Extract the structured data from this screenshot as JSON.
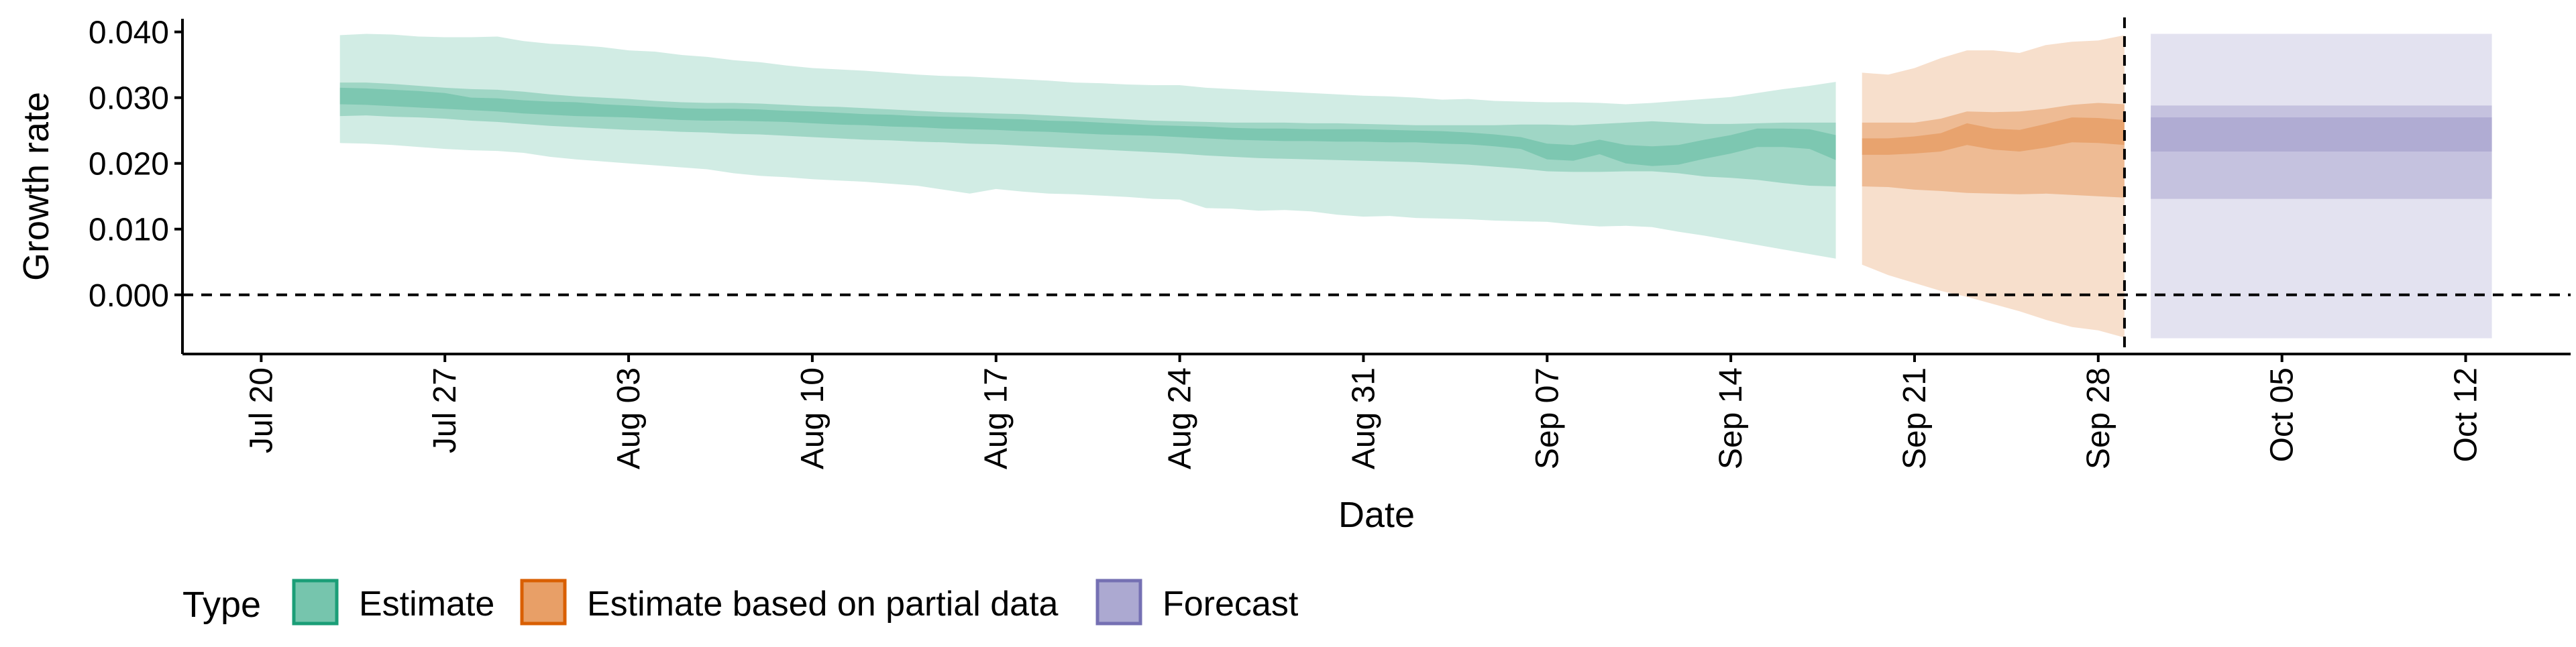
{
  "chart_data": {
    "type": "area",
    "title": "",
    "xlabel": "Date",
    "ylabel": "Growth rate",
    "y_ticks": [
      0.0,
      0.01,
      0.02,
      0.03,
      0.04
    ],
    "y_tick_labels": [
      "0.000",
      "0.010",
      "0.020",
      "0.030",
      "0.040"
    ],
    "ylim": [
      -0.009,
      0.042
    ],
    "xlim": [
      "2020-07-17",
      "2020-10-16"
    ],
    "x_ticks": [
      "2020-07-20",
      "2020-07-27",
      "2020-08-03",
      "2020-08-10",
      "2020-08-17",
      "2020-08-24",
      "2020-08-31",
      "2020-09-07",
      "2020-09-14",
      "2020-09-21",
      "2020-09-28",
      "2020-10-05",
      "2020-10-12"
    ],
    "x_tick_labels": [
      "Jul 20",
      "Jul 27",
      "Aug 03",
      "Aug 10",
      "Aug 17",
      "Aug 24",
      "Aug 31",
      "Sep 07",
      "Sep 14",
      "Sep 21",
      "Sep 28",
      "Oct 05",
      "Oct 12"
    ],
    "grid": false,
    "reference_lines": [
      {
        "axis": "y",
        "value": 0.0,
        "style": "dashed"
      },
      {
        "axis": "x",
        "value": "2020-09-29",
        "style": "dashed"
      }
    ],
    "legend": {
      "title": "Type",
      "position": "bottom",
      "entries": [
        {
          "label": "Estimate",
          "color": "#1b9e77"
        },
        {
          "label": "Estimate based on partial data",
          "color": "#d95f02"
        },
        {
          "label": "Forecast",
          "color": "#7570b3"
        }
      ]
    },
    "series": [
      {
        "name": "Estimate",
        "color": "#1b9e77",
        "x": [
          "2020-07-23",
          "2020-07-24",
          "2020-07-25",
          "2020-07-26",
          "2020-07-27",
          "2020-07-28",
          "2020-07-29",
          "2020-07-30",
          "2020-07-31",
          "2020-08-01",
          "2020-08-02",
          "2020-08-03",
          "2020-08-04",
          "2020-08-05",
          "2020-08-06",
          "2020-08-07",
          "2020-08-08",
          "2020-08-09",
          "2020-08-10",
          "2020-08-11",
          "2020-08-12",
          "2020-08-13",
          "2020-08-14",
          "2020-08-15",
          "2020-08-16",
          "2020-08-17",
          "2020-08-18",
          "2020-08-19",
          "2020-08-20",
          "2020-08-21",
          "2020-08-22",
          "2020-08-23",
          "2020-08-24",
          "2020-08-25",
          "2020-08-26",
          "2020-08-27",
          "2020-08-28",
          "2020-08-29",
          "2020-08-30",
          "2020-08-31",
          "2020-09-01",
          "2020-09-02",
          "2020-09-03",
          "2020-09-04",
          "2020-09-05",
          "2020-09-06",
          "2020-09-07",
          "2020-09-08",
          "2020-09-09",
          "2020-09-10",
          "2020-09-11",
          "2020-09-12",
          "2020-09-13",
          "2020-09-14",
          "2020-09-15",
          "2020-09-16",
          "2020-09-17",
          "2020-09-18"
        ],
        "lower90": [
          0.0231,
          0.023,
          0.0228,
          0.0225,
          0.0222,
          0.022,
          0.0219,
          0.0216,
          0.021,
          0.0206,
          0.0203,
          0.02,
          0.0197,
          0.0194,
          0.0191,
          0.0185,
          0.0181,
          0.0179,
          0.0176,
          0.0174,
          0.0172,
          0.0169,
          0.0166,
          0.016,
          0.0154,
          0.0161,
          0.0157,
          0.0154,
          0.0153,
          0.0151,
          0.0149,
          0.0146,
          0.0145,
          0.0132,
          0.0131,
          0.0128,
          0.0129,
          0.0127,
          0.0122,
          0.0119,
          0.012,
          0.0117,
          0.0116,
          0.0115,
          0.0113,
          0.0112,
          0.0111,
          0.0107,
          0.0104,
          0.0105,
          0.0103,
          0.0096,
          0.009,
          0.0083,
          0.0076,
          0.0069,
          0.0062,
          0.0055
        ],
        "upper90": [
          0.0395,
          0.0397,
          0.0396,
          0.0393,
          0.0392,
          0.0392,
          0.0393,
          0.0386,
          0.0382,
          0.038,
          0.0377,
          0.0372,
          0.037,
          0.0365,
          0.0362,
          0.0357,
          0.0354,
          0.0349,
          0.0345,
          0.0343,
          0.0341,
          0.0338,
          0.0335,
          0.0333,
          0.0332,
          0.033,
          0.0328,
          0.0326,
          0.0323,
          0.0322,
          0.032,
          0.0319,
          0.0319,
          0.0315,
          0.0313,
          0.0311,
          0.0309,
          0.0307,
          0.0305,
          0.0303,
          0.0302,
          0.03,
          0.0297,
          0.0298,
          0.0295,
          0.0294,
          0.0293,
          0.0293,
          0.0292,
          0.029,
          0.0292,
          0.0295,
          0.0298,
          0.0301,
          0.0307,
          0.0313,
          0.0318,
          0.0324
        ],
        "lower50": [
          0.0272,
          0.0273,
          0.0271,
          0.027,
          0.0268,
          0.0265,
          0.0263,
          0.026,
          0.0257,
          0.0255,
          0.0253,
          0.0251,
          0.025,
          0.0248,
          0.0247,
          0.0245,
          0.0244,
          0.0242,
          0.024,
          0.0238,
          0.0236,
          0.0235,
          0.0233,
          0.0232,
          0.023,
          0.0229,
          0.0227,
          0.0225,
          0.0223,
          0.0221,
          0.0219,
          0.0217,
          0.0215,
          0.0212,
          0.021,
          0.0208,
          0.0207,
          0.0206,
          0.0205,
          0.0204,
          0.0203,
          0.0202,
          0.02,
          0.0198,
          0.0195,
          0.0192,
          0.0188,
          0.0187,
          0.0187,
          0.0188,
          0.0188,
          0.0185,
          0.018,
          0.0178,
          0.0175,
          0.017,
          0.0166,
          0.0165
        ],
        "upper50": [
          0.0323,
          0.0323,
          0.0321,
          0.0318,
          0.0315,
          0.0313,
          0.0312,
          0.0309,
          0.0305,
          0.0302,
          0.03,
          0.0298,
          0.0295,
          0.0293,
          0.0292,
          0.0292,
          0.0291,
          0.0289,
          0.0287,
          0.0286,
          0.0284,
          0.0282,
          0.028,
          0.0278,
          0.0277,
          0.0276,
          0.0275,
          0.0273,
          0.0271,
          0.0269,
          0.0267,
          0.0265,
          0.0264,
          0.0263,
          0.0262,
          0.0262,
          0.0262,
          0.0261,
          0.0261,
          0.026,
          0.0259,
          0.0258,
          0.0258,
          0.0258,
          0.0258,
          0.0259,
          0.0259,
          0.0258,
          0.026,
          0.0262,
          0.0264,
          0.0262,
          0.026,
          0.026,
          0.0261,
          0.0262,
          0.0262,
          0.0262
        ],
        "lower20": [
          0.029,
          0.0289,
          0.0287,
          0.0285,
          0.0283,
          0.0281,
          0.0279,
          0.0276,
          0.0274,
          0.0272,
          0.0271,
          0.027,
          0.0268,
          0.0266,
          0.0265,
          0.0265,
          0.0264,
          0.0263,
          0.0261,
          0.0259,
          0.0258,
          0.0256,
          0.0255,
          0.0253,
          0.0252,
          0.0251,
          0.0249,
          0.0248,
          0.0246,
          0.0244,
          0.0243,
          0.0242,
          0.024,
          0.0238,
          0.0236,
          0.0235,
          0.0234,
          0.0234,
          0.0233,
          0.0233,
          0.0232,
          0.0232,
          0.023,
          0.0229,
          0.0226,
          0.0222,
          0.0206,
          0.0204,
          0.0214,
          0.02,
          0.0196,
          0.0198,
          0.0207,
          0.0215,
          0.0225,
          0.0225,
          0.0222,
          0.0205
        ],
        "upper20": [
          0.0315,
          0.0314,
          0.0312,
          0.031,
          0.0307,
          0.03,
          0.0299,
          0.0296,
          0.0294,
          0.0293,
          0.029,
          0.0288,
          0.0286,
          0.0284,
          0.0283,
          0.0283,
          0.0282,
          0.028,
          0.0279,
          0.0277,
          0.0275,
          0.0274,
          0.0272,
          0.0271,
          0.027,
          0.0268,
          0.0267,
          0.0265,
          0.0264,
          0.0262,
          0.026,
          0.0258,
          0.0257,
          0.0256,
          0.0254,
          0.0253,
          0.0253,
          0.0252,
          0.0252,
          0.0252,
          0.0251,
          0.025,
          0.0249,
          0.0247,
          0.0244,
          0.024,
          0.023,
          0.0228,
          0.0236,
          0.0228,
          0.0226,
          0.0228,
          0.0236,
          0.0243,
          0.0253,
          0.0253,
          0.0252,
          0.0243
        ]
      },
      {
        "name": "Estimate based on partial data",
        "color": "#d95f02",
        "x": [
          "2020-09-19",
          "2020-09-20",
          "2020-09-21",
          "2020-09-22",
          "2020-09-23",
          "2020-09-24",
          "2020-09-25",
          "2020-09-26",
          "2020-09-27",
          "2020-09-28",
          "2020-09-29"
        ],
        "lower90": [
          0.0046,
          0.003,
          0.0018,
          0.0006,
          -0.0003,
          -0.0014,
          -0.0025,
          -0.0038,
          -0.0049,
          -0.0054,
          -0.0065
        ],
        "upper90": [
          0.0338,
          0.0335,
          0.0345,
          0.036,
          0.0372,
          0.0372,
          0.0368,
          0.038,
          0.0385,
          0.0387,
          0.0395
        ],
        "lower50": [
          0.0165,
          0.0164,
          0.016,
          0.0158,
          0.0155,
          0.0154,
          0.0153,
          0.0154,
          0.0152,
          0.015,
          0.0148
        ],
        "upper50": [
          0.0262,
          0.0262,
          0.0262,
          0.0268,
          0.0279,
          0.0278,
          0.0279,
          0.0283,
          0.0289,
          0.0292,
          0.029
        ],
        "lower20": [
          0.0213,
          0.0213,
          0.0215,
          0.0218,
          0.0228,
          0.0221,
          0.0218,
          0.0224,
          0.0232,
          0.0231,
          0.0228
        ],
        "upper20": [
          0.0238,
          0.0238,
          0.0241,
          0.0246,
          0.0261,
          0.0253,
          0.0251,
          0.026,
          0.027,
          0.0269,
          0.0266
        ]
      },
      {
        "name": "Forecast",
        "color": "#7570b3",
        "x": [
          "2020-09-30",
          "2020-10-13"
        ],
        "lower90": [
          -0.0066,
          -0.0066
        ],
        "upper90": [
          0.0397,
          0.0397
        ],
        "lower50": [
          0.0146,
          0.0146
        ],
        "upper50": [
          0.0288,
          0.0288
        ],
        "lower20": [
          0.0218,
          0.0218
        ],
        "upper20": [
          0.027,
          0.027
        ]
      }
    ]
  }
}
